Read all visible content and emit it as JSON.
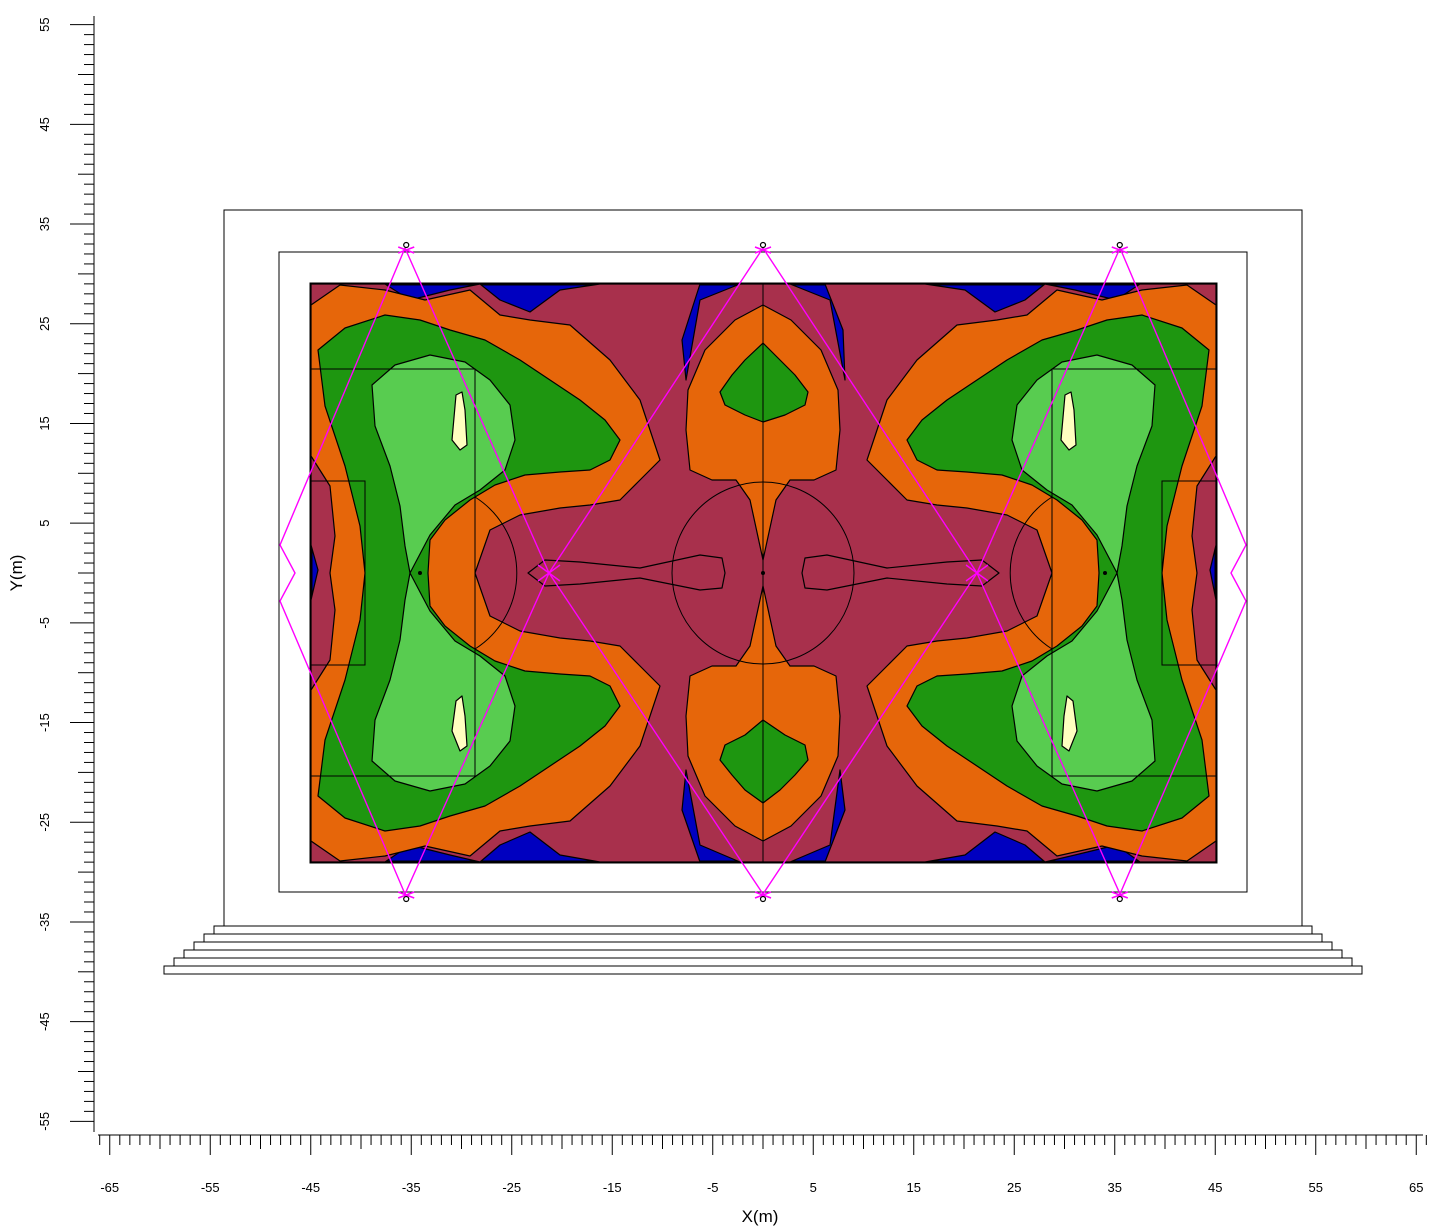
{
  "axes": {
    "x_title": "X(m)",
    "y_title": "Y(m)",
    "x_range": [
      -66,
      66
    ],
    "y_range": [
      -56,
      56
    ],
    "x_tick_labels": [
      "-65",
      "-55",
      "-45",
      "-35",
      "-25",
      "-15",
      "-5",
      "5",
      "15",
      "25",
      "35",
      "45",
      "55",
      "65"
    ],
    "y_tick_labels": [
      "55",
      "45",
      "35",
      "25",
      "15",
      "5",
      "-5",
      "-15",
      "-25",
      "-35",
      "-45",
      "-55"
    ]
  },
  "colors": {
    "level_1_lowest": "#0000c0",
    "level_2": "#a8304c",
    "level_3": "#e6660a",
    "level_4": "#1e9610",
    "level_5": "#58cc50",
    "level_6_highest": "#ffffc0",
    "beams": "#ff00ff"
  },
  "field": {
    "length_m": 90,
    "width_m": 58
  },
  "light_poles_m": [
    [
      -35.5,
      32.5
    ],
    [
      0,
      32.5
    ],
    [
      35.5,
      32.5
    ],
    [
      -35.5,
      -32.5
    ],
    [
      0,
      -32.5
    ],
    [
      35.5,
      -32.5
    ]
  ]
}
